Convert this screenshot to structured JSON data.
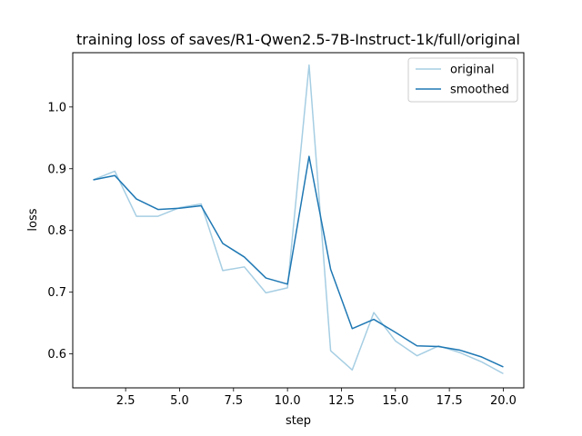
{
  "chart_data": {
    "type": "line",
    "title": "training loss of saves/R1-Qwen2.5-7B-Instruct-1k/full/original",
    "xlabel": "step",
    "ylabel": "loss",
    "xlim": [
      0.05,
      20.95
    ],
    "ylim": [
      0.545,
      1.088
    ],
    "xticks": [
      2.5,
      5.0,
      7.5,
      10.0,
      12.5,
      15.0,
      17.5,
      20.0
    ],
    "xtick_labels": [
      "2.5",
      "5.0",
      "7.5",
      "10.0",
      "12.5",
      "15.0",
      "17.5",
      "20.0"
    ],
    "yticks": [
      0.6,
      0.7,
      0.8,
      0.9,
      1.0
    ],
    "ytick_labels": [
      "0.6",
      "0.7",
      "0.8",
      "0.9",
      "1.0"
    ],
    "grid": false,
    "legend_position": "top-right",
    "x": [
      1,
      2,
      3,
      4,
      5,
      6,
      7,
      8,
      9,
      10,
      11,
      12,
      13,
      14,
      15,
      16,
      17,
      18,
      19,
      20
    ],
    "series": [
      {
        "name": "original",
        "color": "#a6cee3",
        "values": [
          0.882,
          0.896,
          0.823,
          0.823,
          0.837,
          0.843,
          0.735,
          0.741,
          0.699,
          0.707,
          1.068,
          0.605,
          0.574,
          0.667,
          0.621,
          0.597,
          0.613,
          0.602,
          0.587,
          0.568
        ]
      },
      {
        "name": "smoothed",
        "color": "#1f78b4",
        "values": [
          0.882,
          0.889,
          0.851,
          0.834,
          0.836,
          0.84,
          0.779,
          0.757,
          0.723,
          0.713,
          0.92,
          0.737,
          0.641,
          0.656,
          0.635,
          0.613,
          0.612,
          0.606,
          0.595,
          0.579
        ]
      }
    ]
  }
}
